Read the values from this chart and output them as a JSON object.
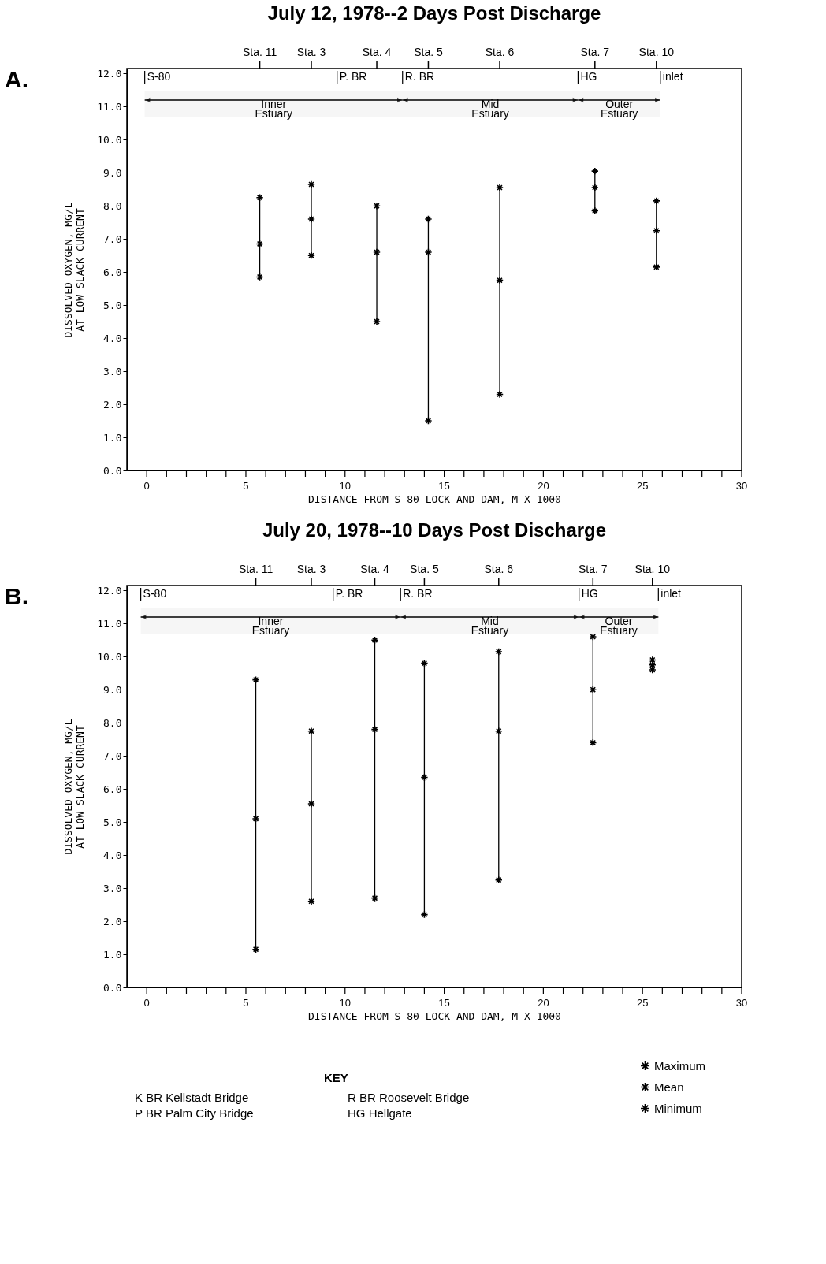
{
  "chart_data": [
    {
      "type": "scatter",
      "title": "July 12, 1978--2 Days Post Discharge",
      "xlabel": "DISTANCE FROM S-80 LOCK AND DAM, M X 1000",
      "ylabel": "DISSOLVED OXYGEN, MG/L\nAT LOW SLACK CURRENT",
      "marker": "cross",
      "grid": false,
      "x": [
        5.7,
        8.3,
        11.6,
        14.2,
        17.8,
        22.6,
        25.7
      ],
      "series": [
        {
          "color": "#000000",
          "values": [
            8.25,
            8.65,
            8.0,
            7.6,
            8.55,
            9.05,
            8.15
          ]
        },
        {
          "color": "#000000",
          "values": [
            6.85,
            7.6,
            6.6,
            6.6,
            5.75,
            8.55,
            7.25
          ],
          "errors": [
            [
              5.85,
              8.25
            ],
            [
              6.5,
              8.65
            ],
            [
              4.5,
              8.0
            ],
            [
              1.5,
              7.6
            ],
            [
              2.3,
              8.55
            ],
            [
              7.85,
              9.05
            ],
            [
              6.15,
              8.15
            ]
          ]
        },
        {
          "color": "#000000",
          "values": [
            5.85,
            6.5,
            4.5,
            1.5,
            2.3,
            7.85,
            6.15
          ]
        }
      ],
      "xlim": [
        -1,
        30
      ],
      "ylim": [
        0,
        12.15
      ],
      "xticks": [
        0,
        {
          "value": 1,
          "label": null
        },
        {
          "value": 2,
          "label": null
        },
        {
          "value": 3,
          "label": null
        },
        {
          "value": 4,
          "label": null
        },
        5,
        {
          "value": 6,
          "label": null
        },
        {
          "value": 7,
          "label": null
        },
        {
          "value": 8,
          "label": null
        },
        {
          "value": 9,
          "label": null
        },
        10,
        {
          "value": 11,
          "label": null
        },
        {
          "value": 12,
          "label": null
        },
        {
          "value": 13,
          "label": null
        },
        {
          "value": 14,
          "label": null
        },
        15,
        {
          "value": 16,
          "label": null
        },
        {
          "value": 17,
          "label": null
        },
        {
          "value": 18,
          "label": null
        },
        {
          "value": 19,
          "label": null
        },
        20,
        {
          "value": 21,
          "label": null
        },
        {
          "value": 22,
          "label": null
        },
        {
          "value": 23,
          "label": null
        },
        {
          "value": 24,
          "label": null
        },
        25,
        {
          "value": 26,
          "label": null
        },
        {
          "value": 27,
          "label": null
        },
        {
          "value": 28,
          "label": null
        },
        {
          "value": 29,
          "label": null
        },
        30
      ],
      "yticks": [
        {
          "value": 0,
          "label": "0.0"
        },
        {
          "value": 1,
          "label": "1.0"
        },
        {
          "value": 2,
          "label": "2.0"
        },
        {
          "value": 3,
          "label": "3.0"
        },
        {
          "value": 4,
          "label": "4.0"
        },
        {
          "value": 5,
          "label": "5.0"
        },
        {
          "value": 6,
          "label": "6.0"
        },
        {
          "value": 7,
          "label": "7.0"
        },
        {
          "value": 8,
          "label": "8.0"
        },
        {
          "value": 9,
          "label": "9.0"
        },
        {
          "value": 10,
          "label": "10.0"
        },
        {
          "value": 11,
          "label": "11.0"
        },
        {
          "value": 12,
          "label": "12.0"
        }
      ],
      "ref_lines": [
        {
          "axis": "x",
          "value": -0.1,
          "label": "S-80"
        },
        {
          "axis": "x",
          "value": 9.6,
          "label": "P. BR"
        },
        {
          "axis": "x",
          "value": 12.9,
          "label": "R. BR"
        },
        {
          "axis": "x",
          "value": 21.75,
          "label": "HG"
        },
        {
          "axis": "x",
          "value": 25.9,
          "label": "inlet"
        }
      ],
      "bands": [
        {
          "axis": "x",
          "from": -0.1,
          "to": 12.9,
          "label": "Inner Estuary"
        },
        {
          "axis": "x",
          "from": 12.9,
          "to": 21.75,
          "label": "Mid Estuary"
        },
        {
          "axis": "x",
          "from": 21.75,
          "to": 25.9,
          "label": "Outer Estuary"
        }
      ],
      "annotations": [
        "A.",
        "Sta. 11",
        "Sta. 3",
        "Sta. 4",
        "Sta. 5",
        "Sta. 6",
        "Sta. 7",
        "Sta. 10"
      ]
    },
    {
      "type": "scatter",
      "title": "July 20, 1978--10 Days Post Discharge",
      "xlabel": "DISTANCE FROM S-80 LOCK AND DAM, M X 1000",
      "ylabel": "DISSOLVED OXYGEN, MG/L\nAT LOW SLACK CURRENT",
      "marker": "cross",
      "grid": false,
      "legend": "bottom right",
      "x": [
        5.5,
        8.3,
        11.5,
        14.0,
        17.75,
        22.5,
        25.5
      ],
      "series": [
        {
          "name": "Maximum",
          "color": "#000000",
          "values": [
            9.3,
            7.75,
            10.5,
            9.8,
            10.15,
            10.6,
            9.9
          ]
        },
        {
          "name": "Mean",
          "color": "#000000",
          "values": [
            5.1,
            5.55,
            7.8,
            6.35,
            7.75,
            9.0,
            9.75
          ],
          "errors": [
            [
              1.15,
              9.3
            ],
            [
              2.6,
              7.75
            ],
            [
              2.7,
              10.5
            ],
            [
              2.2,
              9.8
            ],
            [
              3.25,
              10.15
            ],
            [
              7.4,
              10.6
            ],
            [
              9.6,
              9.9
            ]
          ]
        },
        {
          "name": "Minimum",
          "color": "#000000",
          "values": [
            1.15,
            2.6,
            2.7,
            2.2,
            3.25,
            7.4,
            9.6
          ]
        }
      ],
      "xlim": [
        -1,
        30
      ],
      "ylim": [
        0,
        12.15
      ],
      "xticks": [
        0,
        {
          "value": 1,
          "label": null
        },
        {
          "value": 2,
          "label": null
        },
        {
          "value": 3,
          "label": null
        },
        {
          "value": 4,
          "label": null
        },
        5,
        {
          "value": 6,
          "label": null
        },
        {
          "value": 7,
          "label": null
        },
        {
          "value": 8,
          "label": null
        },
        {
          "value": 9,
          "label": null
        },
        10,
        {
          "value": 11,
          "label": null
        },
        {
          "value": 12,
          "label": null
        },
        {
          "value": 13,
          "label": null
        },
        {
          "value": 14,
          "label": null
        },
        15,
        {
          "value": 16,
          "label": null
        },
        {
          "value": 17,
          "label": null
        },
        {
          "value": 18,
          "label": null
        },
        {
          "value": 19,
          "label": null
        },
        20,
        {
          "value": 21,
          "label": null
        },
        {
          "value": 22,
          "label": null
        },
        {
          "value": 23,
          "label": null
        },
        {
          "value": 24,
          "label": null
        },
        25,
        {
          "value": 26,
          "label": null
        },
        {
          "value": 27,
          "label": null
        },
        {
          "value": 28,
          "label": null
        },
        {
          "value": 29,
          "label": null
        },
        30
      ],
      "yticks": [
        {
          "value": 0,
          "label": "0.0"
        },
        {
          "value": 1,
          "label": "1.0"
        },
        {
          "value": 2,
          "label": "2.0"
        },
        {
          "value": 3,
          "label": "3.0"
        },
        {
          "value": 4,
          "label": "4.0"
        },
        {
          "value": 5,
          "label": "5.0"
        },
        {
          "value": 6,
          "label": "6.0"
        },
        {
          "value": 7,
          "label": "7.0"
        },
        {
          "value": 8,
          "label": "8.0"
        },
        {
          "value": 9,
          "label": "9.0"
        },
        {
          "value": 10,
          "label": "10.0"
        },
        {
          "value": 11,
          "label": "11.0"
        },
        {
          "value": 12,
          "label": "12.0"
        }
      ],
      "ref_lines": [
        {
          "axis": "x",
          "value": -0.3,
          "label": "S-80"
        },
        {
          "axis": "x",
          "value": 9.4,
          "label": "P. BR"
        },
        {
          "axis": "x",
          "value": 12.8,
          "label": "R. BR"
        },
        {
          "axis": "x",
          "value": 21.8,
          "label": "HG"
        },
        {
          "axis": "x",
          "value": 25.8,
          "label": "inlet"
        }
      ],
      "bands": [
        {
          "axis": "x",
          "from": -0.3,
          "to": 12.8,
          "label": "Inner Estuary"
        },
        {
          "axis": "x",
          "from": 12.8,
          "to": 21.8,
          "label": "Mid Estuary"
        },
        {
          "axis": "x",
          "from": 21.8,
          "to": 25.8,
          "label": "Outer Estuary"
        }
      ],
      "annotations": [
        "B.",
        "Sta. 11",
        "Sta. 3",
        "Sta. 4",
        "Sta. 5",
        "Sta. 6",
        "Sta. 7",
        "Sta. 10",
        "KEY",
        "K BR Kellstadt Bridge",
        "P BR Palm City Bridge",
        "R BR Roosevelt Bridge",
        "HG Hellgate"
      ]
    }
  ]
}
